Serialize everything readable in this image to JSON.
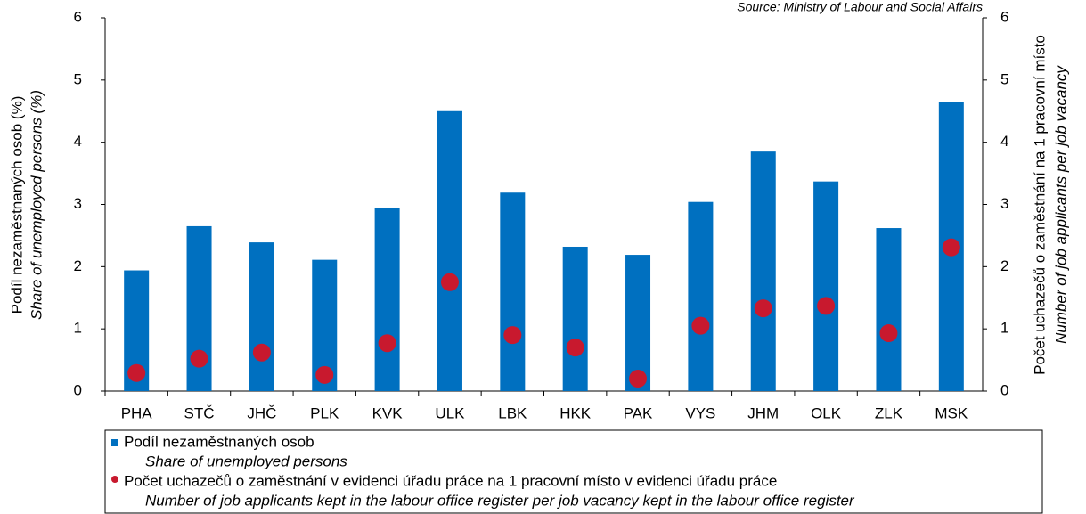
{
  "chart_data": {
    "type": "bar",
    "source": "Source: Ministry of Labour and Social Affairs",
    "categories": [
      "PHA",
      "STČ",
      "JHČ",
      "PLK",
      "KVK",
      "ULK",
      "LBK",
      "HKK",
      "PAK",
      "VYS",
      "JHM",
      "OLK",
      "ZLK",
      "MSK"
    ],
    "series": [
      {
        "name": "Podíl nezaměstnaných osob",
        "name_en": "Share of unemployed persons",
        "type": "bar",
        "color": "#0070c0",
        "values": [
          1.94,
          2.65,
          2.39,
          2.11,
          2.95,
          4.5,
          3.19,
          2.32,
          2.19,
          3.04,
          3.85,
          3.37,
          2.62,
          4.64
        ]
      },
      {
        "name": "Počet uchazečů o zaměstnání v evidenci úřadu práce na 1 pracovní místo v evidenci úřadu práce",
        "name_en": "Number of job applicants kept in the labour office register per job vacancy kept in the labour office register",
        "type": "scatter",
        "axis": "y2",
        "color": "#c8192e",
        "values": [
          0.29,
          0.52,
          0.62,
          0.26,
          0.77,
          1.75,
          0.9,
          0.7,
          0.2,
          1.05,
          1.33,
          1.37,
          0.93,
          2.31
        ]
      }
    ],
    "ylabel": [
      "Podíl nezaměstnaných osob (%)",
      "Share of unemployed persons (%)"
    ],
    "y2label": [
      "Počet uchazečů o zaměstnání na 1 pracovní místo",
      "Number of job applicants per job vacancy"
    ],
    "ylim": [
      0,
      6
    ],
    "yticks": [
      0,
      1,
      2,
      3,
      4,
      5,
      6
    ],
    "y2lim": [
      0,
      6
    ],
    "y2ticks": [
      0,
      1,
      2,
      3,
      4,
      5,
      6
    ]
  }
}
